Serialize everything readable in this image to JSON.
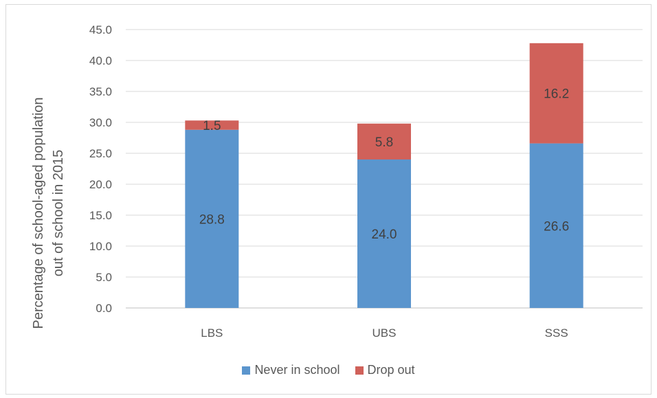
{
  "chart_data": {
    "type": "bar",
    "stacked": true,
    "categories": [
      "LBS",
      "UBS",
      "SSS"
    ],
    "series": [
      {
        "name": "Never in school",
        "values": [
          28.8,
          24.0,
          26.6
        ],
        "labels": [
          "28.8",
          "24.0",
          "26.6"
        ],
        "color": "#5b95cd"
      },
      {
        "name": "Drop out",
        "values": [
          1.5,
          5.8,
          16.2
        ],
        "labels": [
          "1.5",
          "5.8",
          "16.2"
        ],
        "color": "#d0615a"
      }
    ],
    "ylabel": "Percentage of school-aged population out of school in 2015",
    "ylabel_lines": [
      "Percentage of school-aged population",
      "out of school in 2015"
    ],
    "ylim": [
      0,
      45
    ],
    "yticks": [
      "0.0",
      "5.0",
      "10.0",
      "15.0",
      "20.0",
      "25.0",
      "30.0",
      "35.0",
      "40.0",
      "45.0"
    ],
    "grid": true,
    "legend_position": "bottom"
  }
}
